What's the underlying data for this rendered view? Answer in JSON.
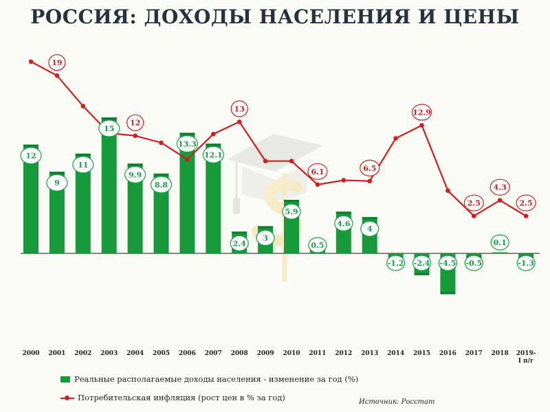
{
  "title": "РОССИЯ: ДОХОДЫ НАСЕЛЕНИЯ И ЦЕНЫ",
  "source": "Источник: Росстат",
  "colors": {
    "bar": "#169a3a",
    "bar_dark": "#0f7a2c",
    "bar_label": "#16a048",
    "line": "#d21e1e"
  },
  "chart_data": {
    "type": "bar",
    "categories": [
      "2000",
      "2001",
      "2002",
      "2003",
      "2004",
      "2005",
      "2006",
      "2007",
      "2008",
      "2009",
      "2010",
      "2011",
      "2012",
      "2013",
      "2014",
      "2015",
      "2016",
      "2017",
      "2018",
      "2019-I п/г"
    ],
    "series": [
      {
        "name": "Реальные располагаемые доходы населения - изменение за год (%)",
        "type": "bar",
        "values": [
          12,
          9,
          11,
          15,
          9.9,
          8.8,
          13.3,
          12.1,
          2.4,
          3,
          5.9,
          0.5,
          4.6,
          4,
          -1.2,
          -2.4,
          -4.5,
          -0.5,
          0.1,
          -1.3
        ]
      },
      {
        "name": "Потребительская инфляция (рост цен в % за год)",
        "type": "line",
        "values": [
          20.2,
          18.6,
          15.1,
          12,
          11.7,
          10.9,
          9,
          11.9,
          13.3,
          8.8,
          8.8,
          6.1,
          6.6,
          6.5,
          11.4,
          12.9,
          5.4,
          2.5,
          4.3,
          2.5
        ]
      }
    ],
    "bar_labels": [
      "12",
      "9",
      "11",
      "15",
      "9.9",
      "8.8",
      "13.3",
      "12.1",
      "2.4",
      "3",
      "5.9",
      "0.5",
      "4.6",
      "4",
      "-1.2",
      "-2.4",
      "-4.5",
      "-0.5",
      "0.1",
      "-1.3"
    ],
    "line_labels": [
      {
        "index": 1,
        "text": "19"
      },
      {
        "index": 4,
        "text": "12"
      },
      {
        "index": 8,
        "text": "13"
      },
      {
        "index": 11,
        "text": "6.1"
      },
      {
        "index": 13,
        "text": "6.5"
      },
      {
        "index": 15,
        "text": "12.9"
      },
      {
        "index": 17,
        "text": "2.5"
      },
      {
        "index": 18,
        "text": "4.3"
      },
      {
        "index": 19,
        "text": "2.5"
      }
    ],
    "ylim": [
      -5,
      21
    ],
    "legend_position": "bottom-left",
    "grid": false
  }
}
